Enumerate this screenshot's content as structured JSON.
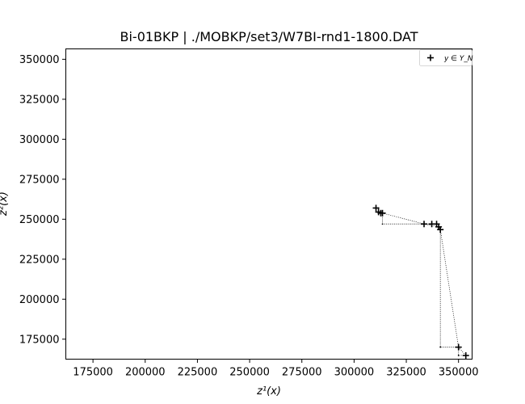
{
  "chart_data": {
    "type": "scatter",
    "title": "Bi-01BKP | ./MOBKP/set3/W7BI-rnd1-1800.DAT",
    "xlabel": "z¹(x)",
    "ylabel": "z²(x)",
    "xlim": [
      162000,
      356500
    ],
    "ylim": [
      162500,
      356500
    ],
    "xticks": [
      175000,
      200000,
      225000,
      250000,
      275000,
      300000,
      325000,
      350000
    ],
    "yticks": [
      175000,
      200000,
      225000,
      250000,
      275000,
      300000,
      325000,
      350000
    ],
    "xtick_labels": [
      "175000",
      "200000",
      "225000",
      "250000",
      "275000",
      "300000",
      "325000",
      "350000"
    ],
    "ytick_labels": [
      "175000",
      "200000",
      "225000",
      "250000",
      "275000",
      "300000",
      "325000",
      "350000"
    ],
    "legend": {
      "placement": "top-right",
      "entries": [
        "y ∈ Y_N"
      ]
    },
    "series": [
      {
        "name": "y ∈ Y_N",
        "marker": "+",
        "color": "#000000",
        "points": [
          [
            310500,
            257000
          ],
          [
            311700,
            254500
          ],
          [
            312800,
            253800
          ],
          [
            313600,
            253800
          ],
          [
            333500,
            247000
          ],
          [
            337200,
            247000
          ],
          [
            339500,
            247000
          ],
          [
            340500,
            245200
          ],
          [
            341300,
            243500
          ],
          [
            350000,
            170000
          ],
          [
            353500,
            164800
          ]
        ]
      }
    ],
    "staircase": [
      [
        310500,
        257000
      ],
      [
        311700,
        257000
      ],
      [
        311700,
        254500
      ],
      [
        312800,
        254500
      ],
      [
        312800,
        253800
      ],
      [
        313600,
        253800
      ],
      [
        313600,
        247000
      ],
      [
        333500,
        247000
      ],
      [
        337200,
        247000
      ],
      [
        339500,
        247000
      ],
      [
        340500,
        247000
      ],
      [
        340500,
        245200
      ],
      [
        341300,
        245200
      ],
      [
        341300,
        170000
      ],
      [
        350000,
        170000
      ],
      [
        350000,
        164800
      ],
      [
        353500,
        164800
      ]
    ],
    "connector": [
      [
        313600,
        253800
      ],
      [
        333500,
        247000
      ],
      [
        340500,
        245200
      ],
      [
        341300,
        243500
      ],
      [
        350000,
        170000
      ],
      [
        353500,
        164800
      ]
    ],
    "grid": false
  }
}
